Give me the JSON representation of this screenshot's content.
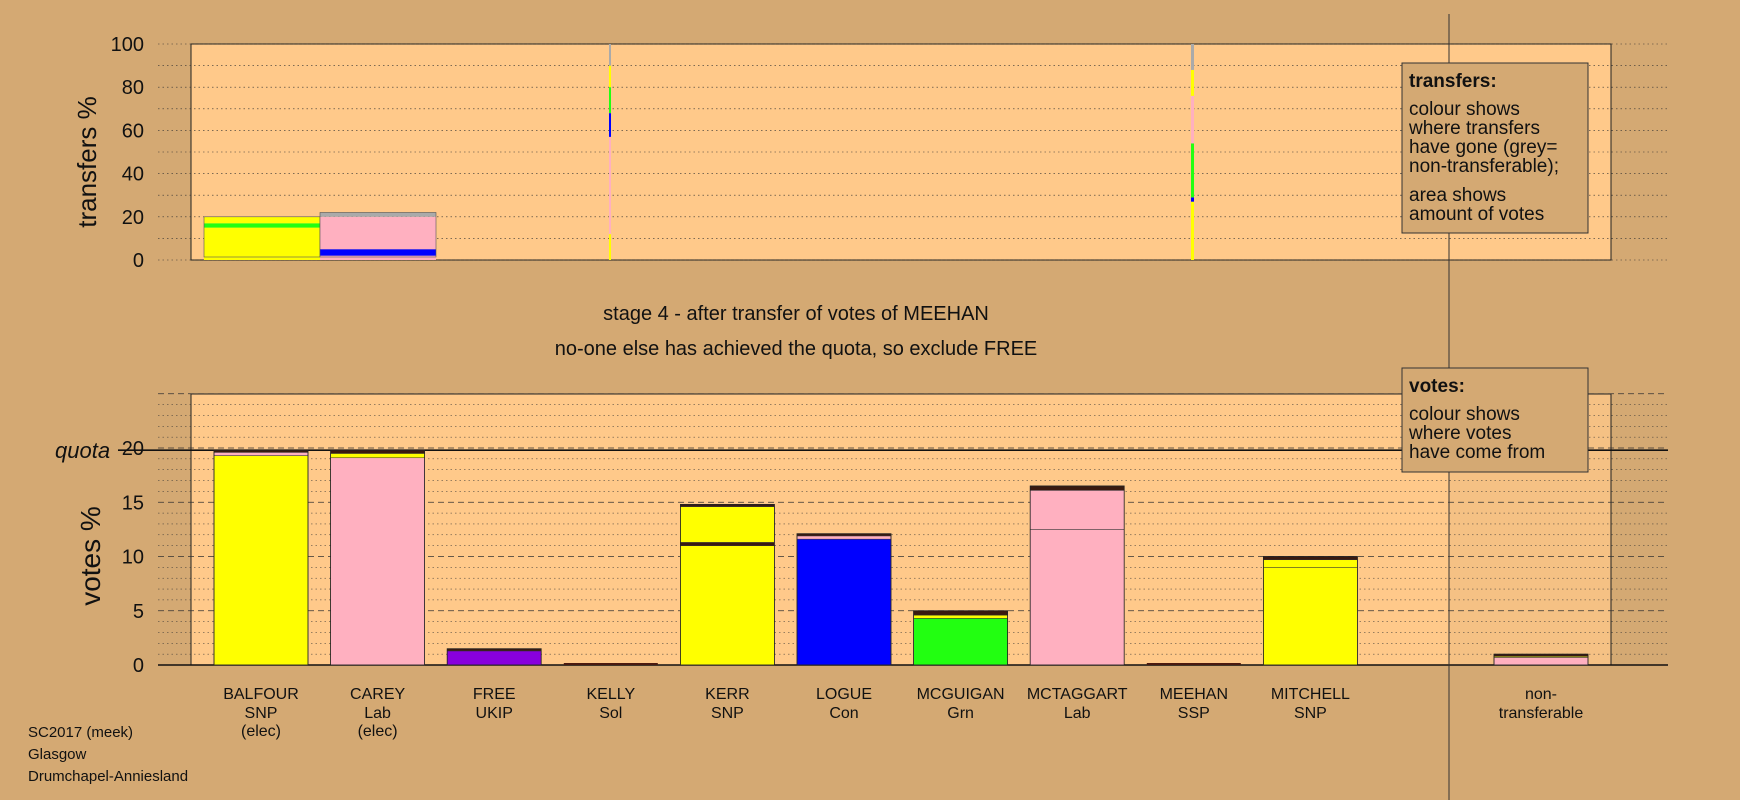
{
  "colors": {
    "background": "#d4a973",
    "plot_area": "#ffc98a",
    "SNP": "#ffff00",
    "Lab": "#ffb0c0",
    "Con": "#0000ff",
    "Grn": "#22ff11",
    "UKIP": "#8800dd",
    "SSP": "#cc0000",
    "Sol": "#ff6600",
    "nontransferable": "#aaaaaa",
    "dark": "#3a1a10"
  },
  "headline": {
    "line1": "stage 4 - after transfer of votes of MEEHAN",
    "line2": "no-one else has achieved the quota, so exclude FREE"
  },
  "footer": {
    "line1": "SC2017 (meek)",
    "line2": "Glasgow",
    "line3": "Drumchapel-Anniesland"
  },
  "transfers_legend": {
    "title": "transfers:",
    "lines": [
      "colour shows",
      "where transfers",
      "have gone (grey=",
      "non-transferable);"
    ],
    "lines2": [
      "area shows",
      "amount of votes"
    ]
  },
  "votes_legend": {
    "title": "votes:",
    "lines": [
      "colour shows",
      "where votes",
      "have come from"
    ]
  },
  "chart_data": [
    {
      "type": "bar",
      "name_key": "transfers",
      "ylabel": "transfers %",
      "ylim": [
        0,
        100
      ],
      "yticks": [
        0,
        20,
        40,
        60,
        80,
        100
      ],
      "grid": true,
      "bars": [
        {
          "candidate": "BALFOUR",
          "segments": [
            {
              "color": "SNP",
              "from": 0,
              "to": 15
            },
            {
              "color": "Grn",
              "from": 15,
              "to": 17
            },
            {
              "color": "SNP",
              "from": 17,
              "to": 20
            }
          ]
        },
        {
          "candidate": "CAREY",
          "segments": [
            {
              "color": "Lab",
              "from": 0,
              "to": 2
            },
            {
              "color": "Con",
              "from": 2,
              "to": 5
            },
            {
              "color": "Lab",
              "from": 5,
              "to": 20
            },
            {
              "color": "nontransferable",
              "from": 20,
              "to": 22
            }
          ]
        },
        {
          "candidate": "KELLY",
          "segments": [
            {
              "color": "SNP",
              "from": 0,
              "to": 12
            },
            {
              "color": "Lab",
              "from": 12,
              "to": 57
            },
            {
              "color": "Con",
              "from": 57,
              "to": 68
            },
            {
              "color": "Grn",
              "from": 68,
              "to": 80
            },
            {
              "color": "SNP",
              "from": 80,
              "to": 90
            },
            {
              "color": "nontransferable",
              "from": 90,
              "to": 100
            }
          ]
        },
        {
          "candidate": "MEEHAN",
          "segments": [
            {
              "color": "SNP",
              "from": 0,
              "to": 27
            },
            {
              "color": "Con",
              "from": 27,
              "to": 29
            },
            {
              "color": "Grn",
              "from": 29,
              "to": 54
            },
            {
              "color": "Lab",
              "from": 54,
              "to": 76
            },
            {
              "color": "SNP",
              "from": 76,
              "to": 88
            },
            {
              "color": "nontransferable",
              "from": 88,
              "to": 100
            }
          ]
        }
      ]
    },
    {
      "type": "bar",
      "name_key": "votes",
      "ylabel": "votes %",
      "ylim": [
        0,
        25
      ],
      "yticks": [
        0,
        5,
        10,
        15,
        20
      ],
      "quota_label": "quota",
      "quota": 19.8,
      "grid": true,
      "categories": [
        {
          "name": "BALFOUR",
          "party": "SNP",
          "note": "(elec)"
        },
        {
          "name": "CAREY",
          "party": "Lab",
          "note": "(elec)"
        },
        {
          "name": "FREE",
          "party": "UKIP",
          "note": ""
        },
        {
          "name": "KELLY",
          "party": "Sol",
          "note": ""
        },
        {
          "name": "KERR",
          "party": "SNP",
          "note": ""
        },
        {
          "name": "LOGUE",
          "party": "Con",
          "note": ""
        },
        {
          "name": "MCGUIGAN",
          "party": "Grn",
          "note": ""
        },
        {
          "name": "MCTAGGART",
          "party": "Lab",
          "note": ""
        },
        {
          "name": "MEEHAN",
          "party": "SSP",
          "note": ""
        },
        {
          "name": "MITCHELL",
          "party": "SNP",
          "note": ""
        }
      ],
      "nontransferable_label": [
        "non-",
        "transferable"
      ],
      "values": [
        19.8,
        19.8,
        1.5,
        0,
        14.8,
        12.1,
        5.0,
        16.5,
        0,
        10.0
      ],
      "segments": [
        [
          {
            "color": "SNP",
            "from": 0,
            "to": 19.3
          },
          {
            "color": "Lab",
            "from": 19.3,
            "to": 19.6
          },
          {
            "color": "dark",
            "from": 19.6,
            "to": 19.8
          }
        ],
        [
          {
            "color": "Lab",
            "from": 0,
            "to": 19.1
          },
          {
            "color": "SNP",
            "from": 19.1,
            "to": 19.5
          },
          {
            "color": "dark",
            "from": 19.5,
            "to": 19.8
          }
        ],
        [
          {
            "color": "UKIP",
            "from": 0,
            "to": 1.3
          },
          {
            "color": "dark",
            "from": 1.3,
            "to": 1.5
          }
        ],
        [],
        [
          {
            "color": "SNP",
            "from": 0,
            "to": 11.0
          },
          {
            "color": "dark",
            "from": 11.0,
            "to": 11.3
          },
          {
            "color": "SNP",
            "from": 11.3,
            "to": 14.6
          },
          {
            "color": "dark",
            "from": 14.6,
            "to": 14.8
          }
        ],
        [
          {
            "color": "Con",
            "from": 0,
            "to": 11.6
          },
          {
            "color": "Lab",
            "from": 11.6,
            "to": 11.9
          },
          {
            "color": "dark",
            "from": 11.9,
            "to": 12.1
          }
        ],
        [
          {
            "color": "Grn",
            "from": 0,
            "to": 4.3
          },
          {
            "color": "SNP",
            "from": 4.3,
            "to": 4.6
          },
          {
            "color": "dark",
            "from": 4.6,
            "to": 5.0
          }
        ],
        [
          {
            "color": "Lab",
            "from": 0,
            "to": 12.5
          },
          {
            "color": "Lab",
            "from": 12.5,
            "to": 16.1
          },
          {
            "color": "dark",
            "from": 16.1,
            "to": 16.5
          }
        ],
        [],
        [
          {
            "color": "SNP",
            "from": 0,
            "to": 9.0
          },
          {
            "color": "SNP",
            "from": 9.0,
            "to": 9.7
          },
          {
            "color": "dark",
            "from": 9.7,
            "to": 10.0
          }
        ]
      ],
      "nontransferable_value": 1.0,
      "nontransferable_segments": [
        {
          "color": "Lab",
          "from": 0,
          "to": 0.7
        },
        {
          "color": "SNP",
          "from": 0.7,
          "to": 0.8
        },
        {
          "color": "dark",
          "from": 0.8,
          "to": 1.0
        }
      ]
    }
  ]
}
